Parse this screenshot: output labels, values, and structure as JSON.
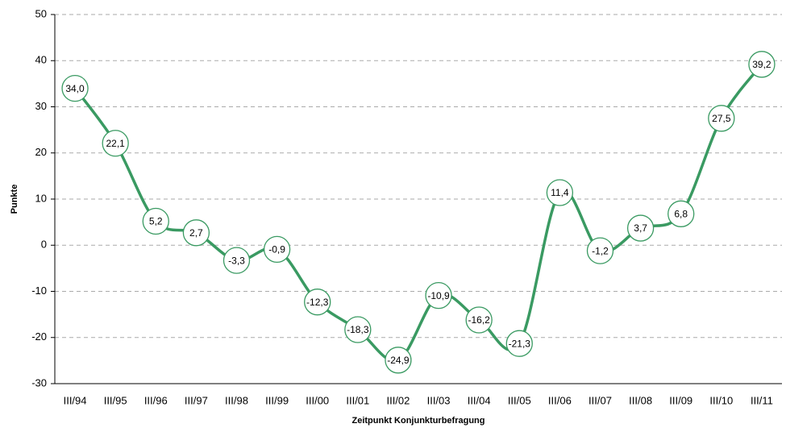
{
  "chart_data": {
    "type": "line",
    "x_label": "Zeitpunkt Konjunkturbefragung",
    "y_label": "Punkte",
    "categories": [
      "III/94",
      "III/95",
      "III/96",
      "III/97",
      "III/98",
      "III/99",
      "III/00",
      "III/01",
      "III/02",
      "III/03",
      "III/04",
      "III/05",
      "III/06",
      "III/07",
      "III/08",
      "III/09",
      "III/10",
      "III/11"
    ],
    "series": [
      {
        "color": "#3a9a62",
        "values": [
          34.0,
          22.1,
          5.2,
          2.7,
          -3.3,
          -0.9,
          -12.3,
          -18.3,
          -24.9,
          -10.9,
          -16.2,
          -21.3,
          11.4,
          -1.2,
          3.7,
          6.8,
          27.5,
          39.2
        ],
        "value_labels": [
          "34,0",
          "22,1",
          "5,2",
          "2,7",
          "-3,3",
          "-0,9",
          "-12,3",
          "-18,3",
          "-24,9",
          "-10,9",
          "-16,2",
          "-21,3",
          "11,4",
          "-1,2",
          "3,7",
          "6,8",
          "27,5",
          "39,2"
        ]
      }
    ],
    "ylim": [
      -30,
      50
    ],
    "yticks": [
      -30,
      -20,
      -10,
      0,
      10,
      20,
      30,
      40,
      50
    ],
    "grid": true
  }
}
